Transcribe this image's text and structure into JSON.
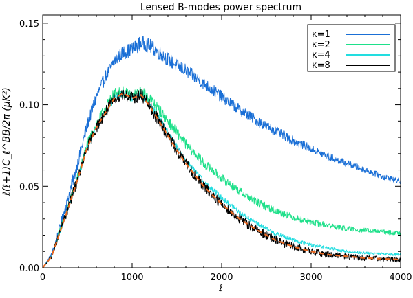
{
  "chart_data": {
    "type": "line",
    "title": "Lensed B-modes power spectrum",
    "xlabel": "ℓ",
    "ylabel": "ℓ(ℓ+1)C_ℓ^BB/2π (μK²)",
    "xlim": [
      0,
      4000
    ],
    "ylim": [
      0,
      0.155
    ],
    "x_ticks": [
      0,
      1000,
      2000,
      3000,
      4000
    ],
    "x_tick_labels": [
      "0",
      "1000",
      "2000",
      "3000",
      "4000"
    ],
    "y_ticks": [
      0,
      0.05,
      0.1,
      0.15
    ],
    "y_tick_labels": [
      "0.00",
      "0.05",
      "0.10",
      "0.15"
    ],
    "grid": false,
    "legend_position": "top-right",
    "x": [
      0,
      100,
      200,
      300,
      400,
      500,
      600,
      700,
      800,
      900,
      1000,
      1100,
      1200,
      1300,
      1400,
      1500,
      1600,
      1800,
      2000,
      2200,
      2400,
      2600,
      2800,
      3000,
      3200,
      3400,
      3600,
      3800,
      4000
    ],
    "series": [
      {
        "name": "κ=1",
        "color": "#1a6fd6",
        "noise": 0.0045,
        "values": [
          0.0,
          0.008,
          0.026,
          0.046,
          0.066,
          0.088,
          0.105,
          0.117,
          0.127,
          0.132,
          0.134,
          0.138,
          0.136,
          0.132,
          0.128,
          0.124,
          0.121,
          0.113,
          0.105,
          0.097,
          0.09,
          0.084,
          0.078,
          0.073,
          0.068,
          0.064,
          0.06,
          0.056,
          0.053
        ]
      },
      {
        "name": "κ=2",
        "color": "#1ee08a",
        "noise": 0.0035,
        "values": [
          0.0,
          0.007,
          0.024,
          0.04,
          0.057,
          0.076,
          0.088,
          0.098,
          0.107,
          0.108,
          0.105,
          0.108,
          0.104,
          0.097,
          0.09,
          0.083,
          0.076,
          0.064,
          0.055,
          0.047,
          0.04,
          0.035,
          0.031,
          0.028,
          0.026,
          0.024,
          0.023,
          0.022,
          0.021
        ]
      },
      {
        "name": "κ=4",
        "color": "#22dde0",
        "noise": 0.002,
        "values": [
          0.0,
          0.007,
          0.023,
          0.039,
          0.056,
          0.074,
          0.086,
          0.095,
          0.104,
          0.107,
          0.104,
          0.106,
          0.1,
          0.092,
          0.083,
          0.074,
          0.066,
          0.053,
          0.043,
          0.034,
          0.027,
          0.021,
          0.017,
          0.014,
          0.012,
          0.01,
          0.009,
          0.0085,
          0.008
        ]
      },
      {
        "name": "κ=8",
        "color": "#000000",
        "noise": 0.004,
        "values": [
          0.0,
          0.007,
          0.023,
          0.039,
          0.056,
          0.074,
          0.086,
          0.095,
          0.104,
          0.107,
          0.104,
          0.106,
          0.099,
          0.09,
          0.081,
          0.072,
          0.064,
          0.05,
          0.039,
          0.03,
          0.023,
          0.017,
          0.013,
          0.01,
          0.008,
          0.007,
          0.006,
          0.0055,
          0.005
        ]
      },
      {
        "name": "",
        "color": "#e8661e",
        "dashed": true,
        "noise": 0,
        "values": [
          0.0,
          0.007,
          0.023,
          0.039,
          0.056,
          0.074,
          0.086,
          0.095,
          0.104,
          0.107,
          0.104,
          0.106,
          0.099,
          0.09,
          0.081,
          0.072,
          0.064,
          0.05,
          0.039,
          0.03,
          0.023,
          0.017,
          0.013,
          0.01,
          0.008,
          0.007,
          0.006,
          0.0055,
          0.005
        ]
      }
    ],
    "legend": [
      {
        "label": "κ=1",
        "color": "#1a6fd6"
      },
      {
        "label": "κ=2",
        "color": "#1ee08a"
      },
      {
        "label": "κ=4",
        "color": "#22dde0"
      },
      {
        "label": "κ=8",
        "color": "#000000"
      }
    ]
  }
}
